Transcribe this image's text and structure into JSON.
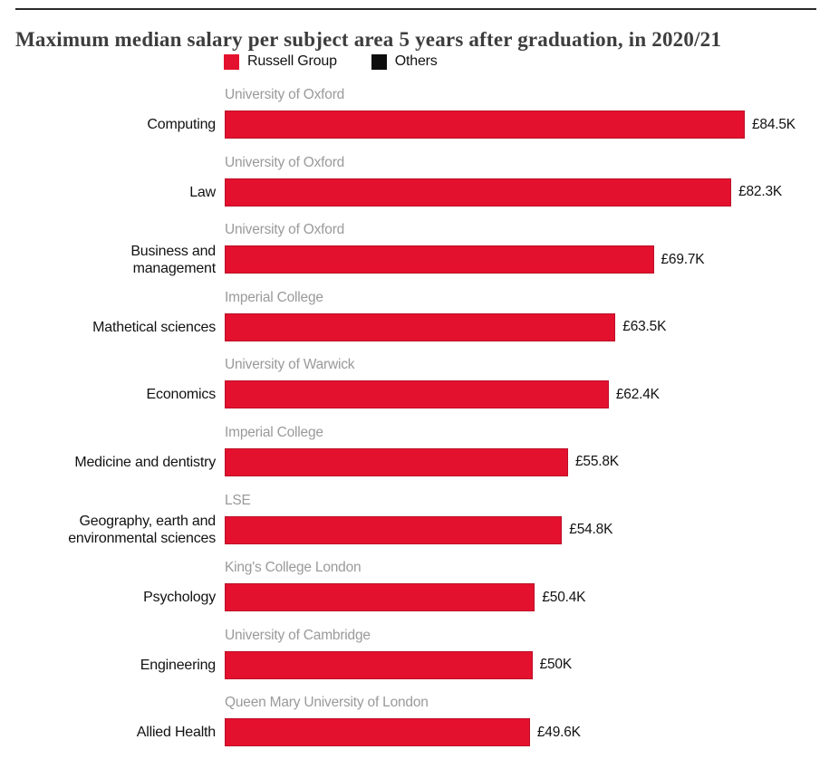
{
  "header": {
    "title": "Maximum median salary per subject area 5 years after graduation, in 2020/21"
  },
  "colors": {
    "bar": "#e4112e",
    "bar_border": "#bb0f27",
    "others": "#0d0d0d",
    "university_label": "#9a9a9a",
    "text": "#121212",
    "title": "#3d3d3d",
    "rule": "#2a2a2a"
  },
  "chart_data": {
    "type": "bar",
    "orientation": "horizontal",
    "title": "Maximum median salary per subject area 5 years after graduation, in 2020/21",
    "value_unit": "GBP thousands per year",
    "axis": {
      "xmin_k": 0,
      "xmax_k": 84.5,
      "gridlines": false,
      "axis_labels_shown": false
    },
    "legend_position": "top",
    "legend": [
      {
        "label": "Russell Group",
        "color": "#e4112e"
      },
      {
        "label": "Others",
        "color": "#0d0d0d"
      }
    ],
    "rows": [
      {
        "subject": "Computing",
        "university": "University of Oxford",
        "value_k": 84.5,
        "value_label": "£84.5K",
        "group": "Russell Group"
      },
      {
        "subject": "Law",
        "university": "University of Oxford",
        "value_k": 82.3,
        "value_label": "£82.3K",
        "group": "Russell Group"
      },
      {
        "subject": "Business and\nmanagement",
        "university": "University of Oxford",
        "value_k": 69.7,
        "value_label": "£69.7K",
        "group": "Russell Group"
      },
      {
        "subject": "Mathetical sciences",
        "university": "Imperial College",
        "value_k": 63.5,
        "value_label": "£63.5K",
        "group": "Russell Group"
      },
      {
        "subject": "Economics",
        "university": "University of Warwick",
        "value_k": 62.4,
        "value_label": "£62.4K",
        "group": "Russell Group"
      },
      {
        "subject": "Medicine and dentistry",
        "university": "Imperial College",
        "value_k": 55.8,
        "value_label": "£55.8K",
        "group": "Russell Group"
      },
      {
        "subject": "Geography, earth and\nenvironmental sciences",
        "university": "LSE",
        "value_k": 54.8,
        "value_label": "£54.8K",
        "group": "Russell Group"
      },
      {
        "subject": "Psychology",
        "university": "King's College London",
        "value_k": 50.4,
        "value_label": "£50.4K",
        "group": "Russell Group"
      },
      {
        "subject": "Engineering",
        "university": "University of Cambridge",
        "value_k": 50,
        "value_label": "£50K",
        "group": "Russell Group"
      },
      {
        "subject": "Allied Health",
        "university": "Queen Mary University of London",
        "value_k": 49.6,
        "value_label": "£49.6K",
        "group": "Russell Group"
      }
    ]
  }
}
